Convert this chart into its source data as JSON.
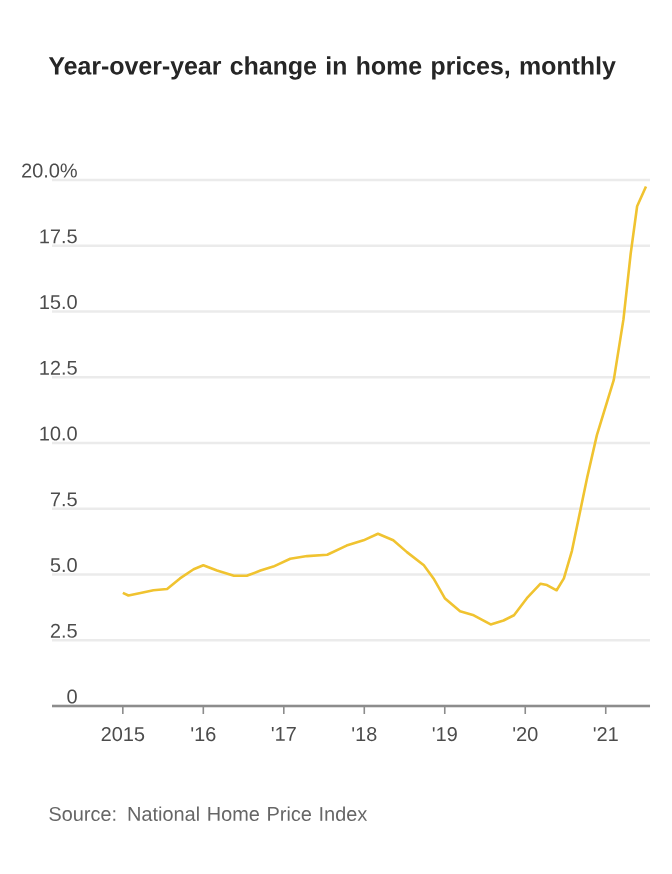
{
  "chart_data": {
    "type": "line",
    "title": "Year-over-year change in home prices, monthly",
    "annotations": [
      "Source: National Home Price Index"
    ],
    "x": [
      2015.0,
      2015.07,
      2015.22,
      2015.38,
      2015.55,
      2015.71,
      2015.88,
      2016.0,
      2016.17,
      2016.38,
      2016.54,
      2016.71,
      2016.87,
      2017.08,
      2017.29,
      2017.54,
      2017.78,
      2017.99,
      2018.17,
      2018.36,
      2018.53,
      2018.74,
      2018.86,
      2019.0,
      2019.19,
      2019.36,
      2019.57,
      2019.73,
      2019.86,
      2020.02,
      2020.19,
      2020.27,
      2020.39,
      2020.48,
      2020.58,
      2020.77,
      2020.89,
      2021.1,
      2021.22,
      2021.31,
      2021.39,
      2021.5
    ],
    "values": [
      4.3,
      4.2,
      4.3,
      4.4,
      4.45,
      4.85,
      5.2,
      5.35,
      5.15,
      4.95,
      4.95,
      5.15,
      5.3,
      5.6,
      5.7,
      5.75,
      6.1,
      6.3,
      6.55,
      6.3,
      5.85,
      5.35,
      4.85,
      4.1,
      3.6,
      3.45,
      3.1,
      3.25,
      3.45,
      4.1,
      4.65,
      4.6,
      4.4,
      4.85,
      5.9,
      8.7,
      10.3,
      12.4,
      14.7,
      17.2,
      19.0,
      19.75
    ],
    "color": "#f0c330",
    "xlim": [
      2014.12,
      2021.55
    ],
    "xticks": [
      2015,
      {
        "value": 2016,
        "label": "'16"
      },
      {
        "value": 2017,
        "label": "'17"
      },
      {
        "value": 2018,
        "label": "'18"
      },
      {
        "value": 2019,
        "label": "'19"
      },
      {
        "value": 2020,
        "label": "'20"
      },
      {
        "value": 2021,
        "label": "'21"
      }
    ],
    "ylim": [
      0,
      20
    ],
    "yticks": [
      0,
      2.5,
      {
        "value": 5,
        "label": "5.0"
      },
      7.5,
      {
        "value": 10,
        "label": "10.0"
      },
      12.5,
      {
        "value": 15,
        "label": "15.0"
      },
      17.5,
      {
        "value": 20,
        "label": "20.0%"
      }
    ],
    "grid": "y"
  }
}
